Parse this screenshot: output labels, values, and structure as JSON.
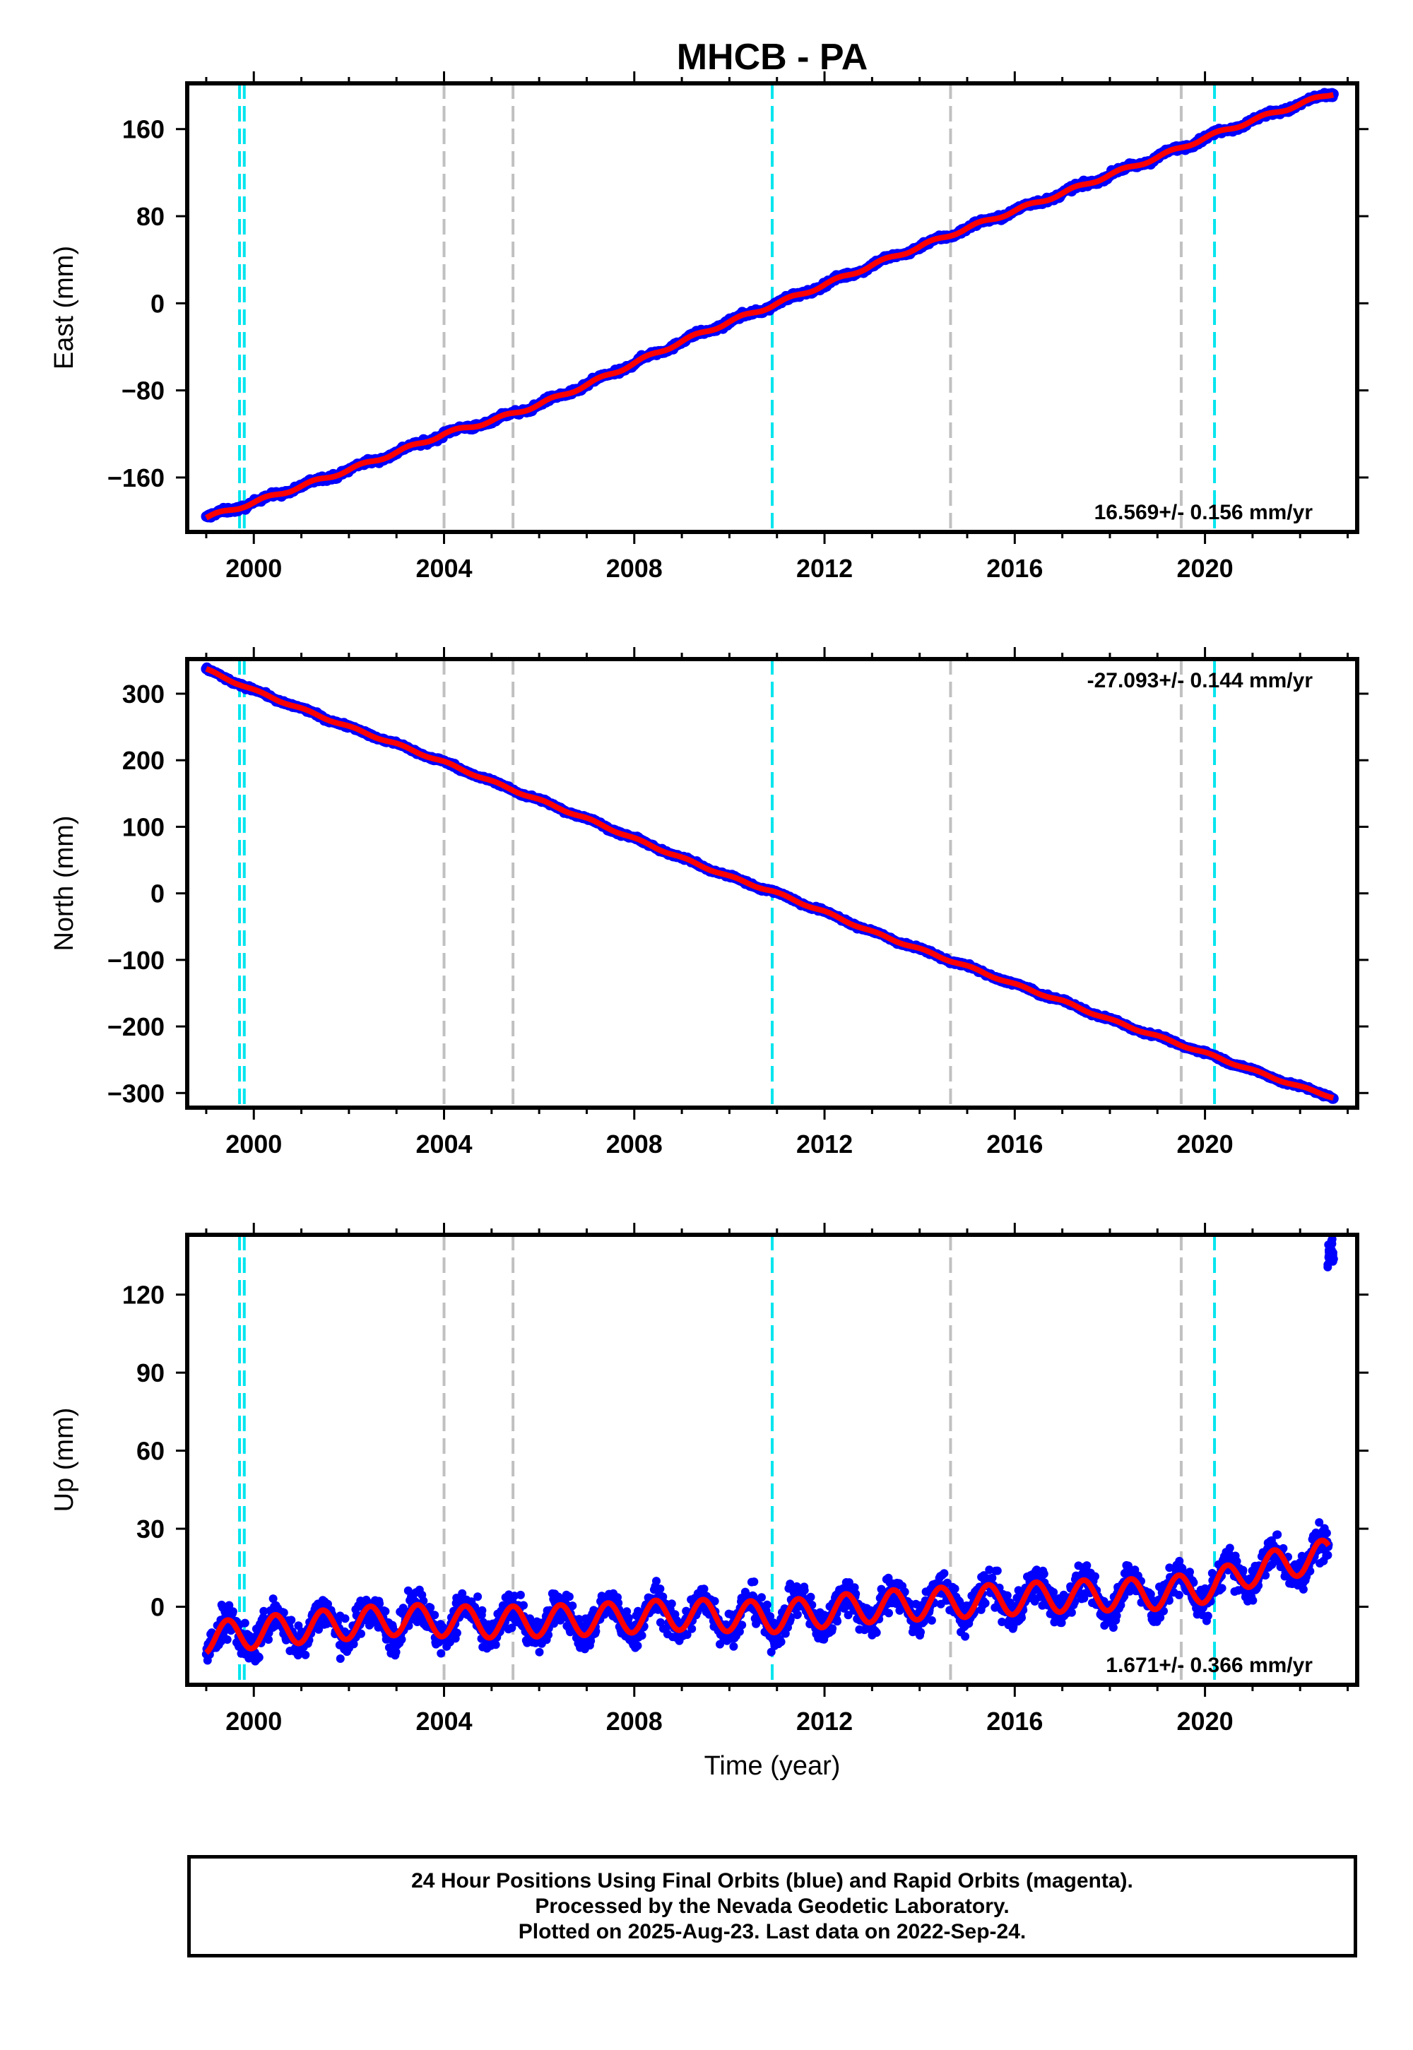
{
  "title": "MHCB - PA",
  "xlabel": "Time (year)",
  "x_ticks": [
    "2000",
    "2004",
    "2008",
    "2012",
    "2016",
    "2020"
  ],
  "colors": {
    "data_points": "#0000ff",
    "model_line": "#ff0000",
    "equipment_change_lines": "#00e5ee",
    "other_event_lines": "#c0c0c0",
    "frame": "#000000"
  },
  "events": {
    "cyan_dashed": [
      1999.7,
      1999.8,
      2010.9,
      2020.2
    ],
    "gray_dashed": [
      2004.0,
      2005.45,
      2014.65,
      2019.5
    ]
  },
  "chart_data": [
    {
      "type": "scatter",
      "component": "East",
      "ylabel": "East (mm)",
      "yticks": [
        "160",
        "80",
        "0",
        "−80",
        "−160"
      ],
      "ylim": [
        -210,
        202
      ],
      "xlim": [
        1998.6,
        2023.2
      ],
      "rate_label": "16.569+/- 0.156 mm/yr",
      "rate_position": "bottom-right",
      "series": [
        {
          "name": "Final Orbits (blue)",
          "x": [
            1999.0,
            2000.0,
            2001.0,
            2002.0,
            2003.0,
            2004.0,
            2005.0,
            2006.0,
            2007.0,
            2008.0,
            2009.0,
            2010.0,
            2010.9,
            2012.0,
            2013.0,
            2014.0,
            2015.0,
            2016.0,
            2017.0,
            2018.0,
            2019.0,
            2020.0,
            2021.0,
            2022.0,
            2022.7
          ],
          "y": [
            -197,
            -183,
            -168,
            -153,
            -137,
            -120,
            -108,
            -93,
            -75,
            -55,
            -35,
            -17,
            -2,
            17,
            35,
            52,
            69,
            85,
            101,
            118,
            134,
            152,
            168,
            183,
            193
          ]
        },
        {
          "name": "model",
          "x": [
            1999.0,
            2000.0,
            2001.0,
            2002.0,
            2003.0,
            2004.0,
            2005.0,
            2006.0,
            2007.0,
            2008.0,
            2009.0,
            2010.0,
            2010.9,
            2012.0,
            2013.0,
            2014.0,
            2015.0,
            2016.0,
            2017.0,
            2018.0,
            2019.0,
            2020.0,
            2021.0,
            2022.0,
            2022.7
          ],
          "y": [
            -197,
            -183,
            -168,
            -153,
            -137,
            -120,
            -108,
            -93,
            -75,
            -55,
            -35,
            -17,
            -2,
            17,
            35,
            52,
            69,
            85,
            101,
            118,
            134,
            152,
            168,
            183,
            193
          ]
        }
      ]
    },
    {
      "type": "scatter",
      "component": "North",
      "ylabel": "North (mm)",
      "yticks": [
        "300",
        "200",
        "100",
        "0",
        "−100",
        "−200",
        "−300"
      ],
      "ylim": [
        -322,
        352
      ],
      "xlim": [
        1998.6,
        2023.2
      ],
      "rate_label": "-27.093+/- 0.144 mm/yr",
      "rate_position": "top-right",
      "series": [
        {
          "name": "Final Orbits (blue)",
          "x": [
            1999.0,
            2000.0,
            2001.0,
            2002.0,
            2003.0,
            2004.0,
            2005.0,
            2006.0,
            2007.0,
            2008.0,
            2009.0,
            2010.0,
            2010.9,
            2012.0,
            2013.0,
            2014.0,
            2015.0,
            2016.0,
            2017.0,
            2018.0,
            2019.0,
            2020.0,
            2021.0,
            2022.0,
            2022.7
          ],
          "y": [
            336,
            305,
            277,
            250,
            224,
            197,
            168,
            140,
            112,
            82,
            53,
            25,
            3,
            -28,
            -58,
            -84,
            -110,
            -137,
            -162,
            -190,
            -215,
            -240,
            -266,
            -291,
            -306
          ]
        },
        {
          "name": "model",
          "x": [
            1999.0,
            2000.0,
            2001.0,
            2002.0,
            2003.0,
            2004.0,
            2005.0,
            2006.0,
            2007.0,
            2008.0,
            2009.0,
            2010.0,
            2010.9,
            2012.0,
            2013.0,
            2014.0,
            2015.0,
            2016.0,
            2017.0,
            2018.0,
            2019.0,
            2020.0,
            2021.0,
            2022.0,
            2022.7
          ],
          "y": [
            336,
            305,
            277,
            250,
            224,
            197,
            168,
            140,
            112,
            82,
            53,
            25,
            3,
            -28,
            -58,
            -84,
            -110,
            -137,
            -162,
            -190,
            -215,
            -240,
            -266,
            -291,
            -306
          ]
        }
      ]
    },
    {
      "type": "scatter",
      "component": "Up",
      "ylabel": "Up (mm)",
      "yticks": [
        "120",
        "90",
        "60",
        "30",
        "0"
      ],
      "ylim": [
        -30,
        143
      ],
      "xlim": [
        1998.6,
        2023.2
      ],
      "rate_label": "1.671+/- 0.366 mm/yr",
      "rate_position": "bottom-right",
      "seasonal_amplitude_mm": 6,
      "series": [
        {
          "name": "Final Orbits (blue)",
          "x": [
            1999.0,
            2001.0,
            2003.0,
            2005.0,
            2007.0,
            2009.0,
            2010.9,
            2013.0,
            2015.0,
            2017.0,
            2019.0,
            2020.2,
            2021.0,
            2022.0,
            2022.6
          ],
          "y": [
            -12,
            -8,
            -5,
            -6,
            -5,
            -3,
            -4,
            0,
            2,
            4,
            5,
            8,
            14,
            18,
            20
          ]
        },
        {
          "name": "model",
          "x": [
            1999.0,
            2001.0,
            2003.0,
            2005.0,
            2007.0,
            2009.0,
            2010.9,
            2013.0,
            2015.0,
            2017.0,
            2019.0,
            2020.2,
            2021.0,
            2022.0,
            2022.6
          ],
          "y": [
            -12,
            -8,
            -5,
            -6,
            -5,
            -3,
            -4,
            0,
            2,
            4,
            5,
            8,
            14,
            18,
            20
          ]
        },
        {
          "name": "outliers",
          "x": [
            2022.6,
            2022.62,
            2022.65,
            2022.68,
            2022.7
          ],
          "y": [
            133,
            137,
            135,
            139,
            134
          ]
        }
      ]
    }
  ],
  "footer": {
    "line1": "24 Hour Positions Using Final Orbits (blue) and Rapid Orbits (magenta).",
    "line2": "Processed by the Nevada Geodetic Laboratory.",
    "line3": "Plotted on 2025-Aug-23. Last data on 2022-Sep-24."
  }
}
